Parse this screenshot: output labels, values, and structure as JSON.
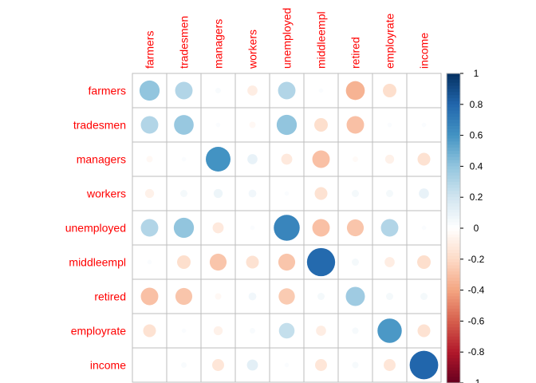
{
  "chart_data": {
    "type": "heatmap",
    "variables": [
      "farmers",
      "tradesmen",
      "managers",
      "workers",
      "unemployed",
      "middleempl",
      "retired",
      "employrate",
      "income"
    ],
    "matrix": [
      [
        0.4,
        0.3,
        0.03,
        -0.1,
        0.3,
        0.02,
        -0.35,
        -0.18,
        0.0
      ],
      [
        0.3,
        0.38,
        0.02,
        -0.04,
        0.4,
        -0.18,
        -0.3,
        0.02,
        0.02
      ],
      [
        -0.04,
        0.02,
        0.6,
        0.1,
        -0.12,
        -0.3,
        -0.03,
        -0.08,
        -0.16
      ],
      [
        -0.08,
        0.05,
        0.08,
        0.06,
        0.02,
        -0.16,
        0.05,
        0.05,
        0.1
      ],
      [
        0.3,
        0.4,
        -0.12,
        0.02,
        0.66,
        -0.3,
        -0.28,
        0.3,
        0.02
      ],
      [
        0.02,
        -0.18,
        -0.28,
        -0.16,
        -0.28,
        0.78,
        0.05,
        -0.1,
        -0.18
      ],
      [
        -0.3,
        -0.28,
        -0.04,
        0.06,
        -0.26,
        0.05,
        0.36,
        0.05,
        0.05
      ],
      [
        -0.16,
        0.02,
        -0.08,
        0.03,
        0.24,
        -0.1,
        0.04,
        0.58,
        -0.16
      ],
      [
        0.0,
        0.03,
        -0.14,
        0.12,
        0.02,
        -0.14,
        0.04,
        -0.14,
        0.8
      ]
    ],
    "colorbar_ticks": [
      "1",
      "0.8",
      "0.6",
      "0.4",
      "0.2",
      "0",
      "-0.2",
      "-0.4",
      "-0.6",
      "-0.8",
      "-1"
    ],
    "colorbar_range": [
      -1,
      1
    ],
    "colors": {
      "negative": "#67001f",
      "mid": "#ffffff",
      "positive": "#053061",
      "grid": "#bebebe",
      "label": "#ff0000"
    }
  }
}
